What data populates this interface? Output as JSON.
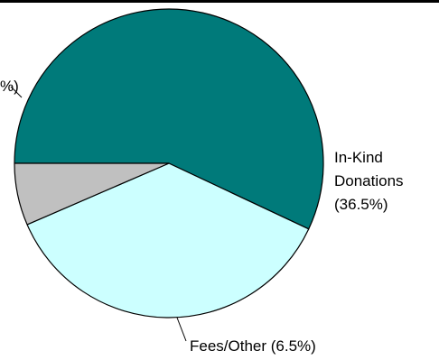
{
  "chart_data": {
    "type": "pie",
    "slices": [
      {
        "label": "",
        "value": 57.0,
        "color": "#007A7A"
      },
      {
        "label": "In-Kind Donations (36.5%)",
        "value": 36.5,
        "color": "#CCFFFF"
      },
      {
        "label": "Fees/Other (6.5%)",
        "value": 6.5,
        "color": "#C0C0C0"
      }
    ],
    "labels": {
      "left_partial": "%)",
      "inkind_line1": "In-Kind",
      "inkind_line2": "Donations",
      "inkind_line3": "(36.5%)",
      "fees": "Fees/Other (6.5%)"
    },
    "start_angle_deg": 180,
    "direction": "clockwise",
    "slice_order": [
      "dark-teal",
      "in-kind",
      "fees"
    ],
    "legend": "none"
  }
}
